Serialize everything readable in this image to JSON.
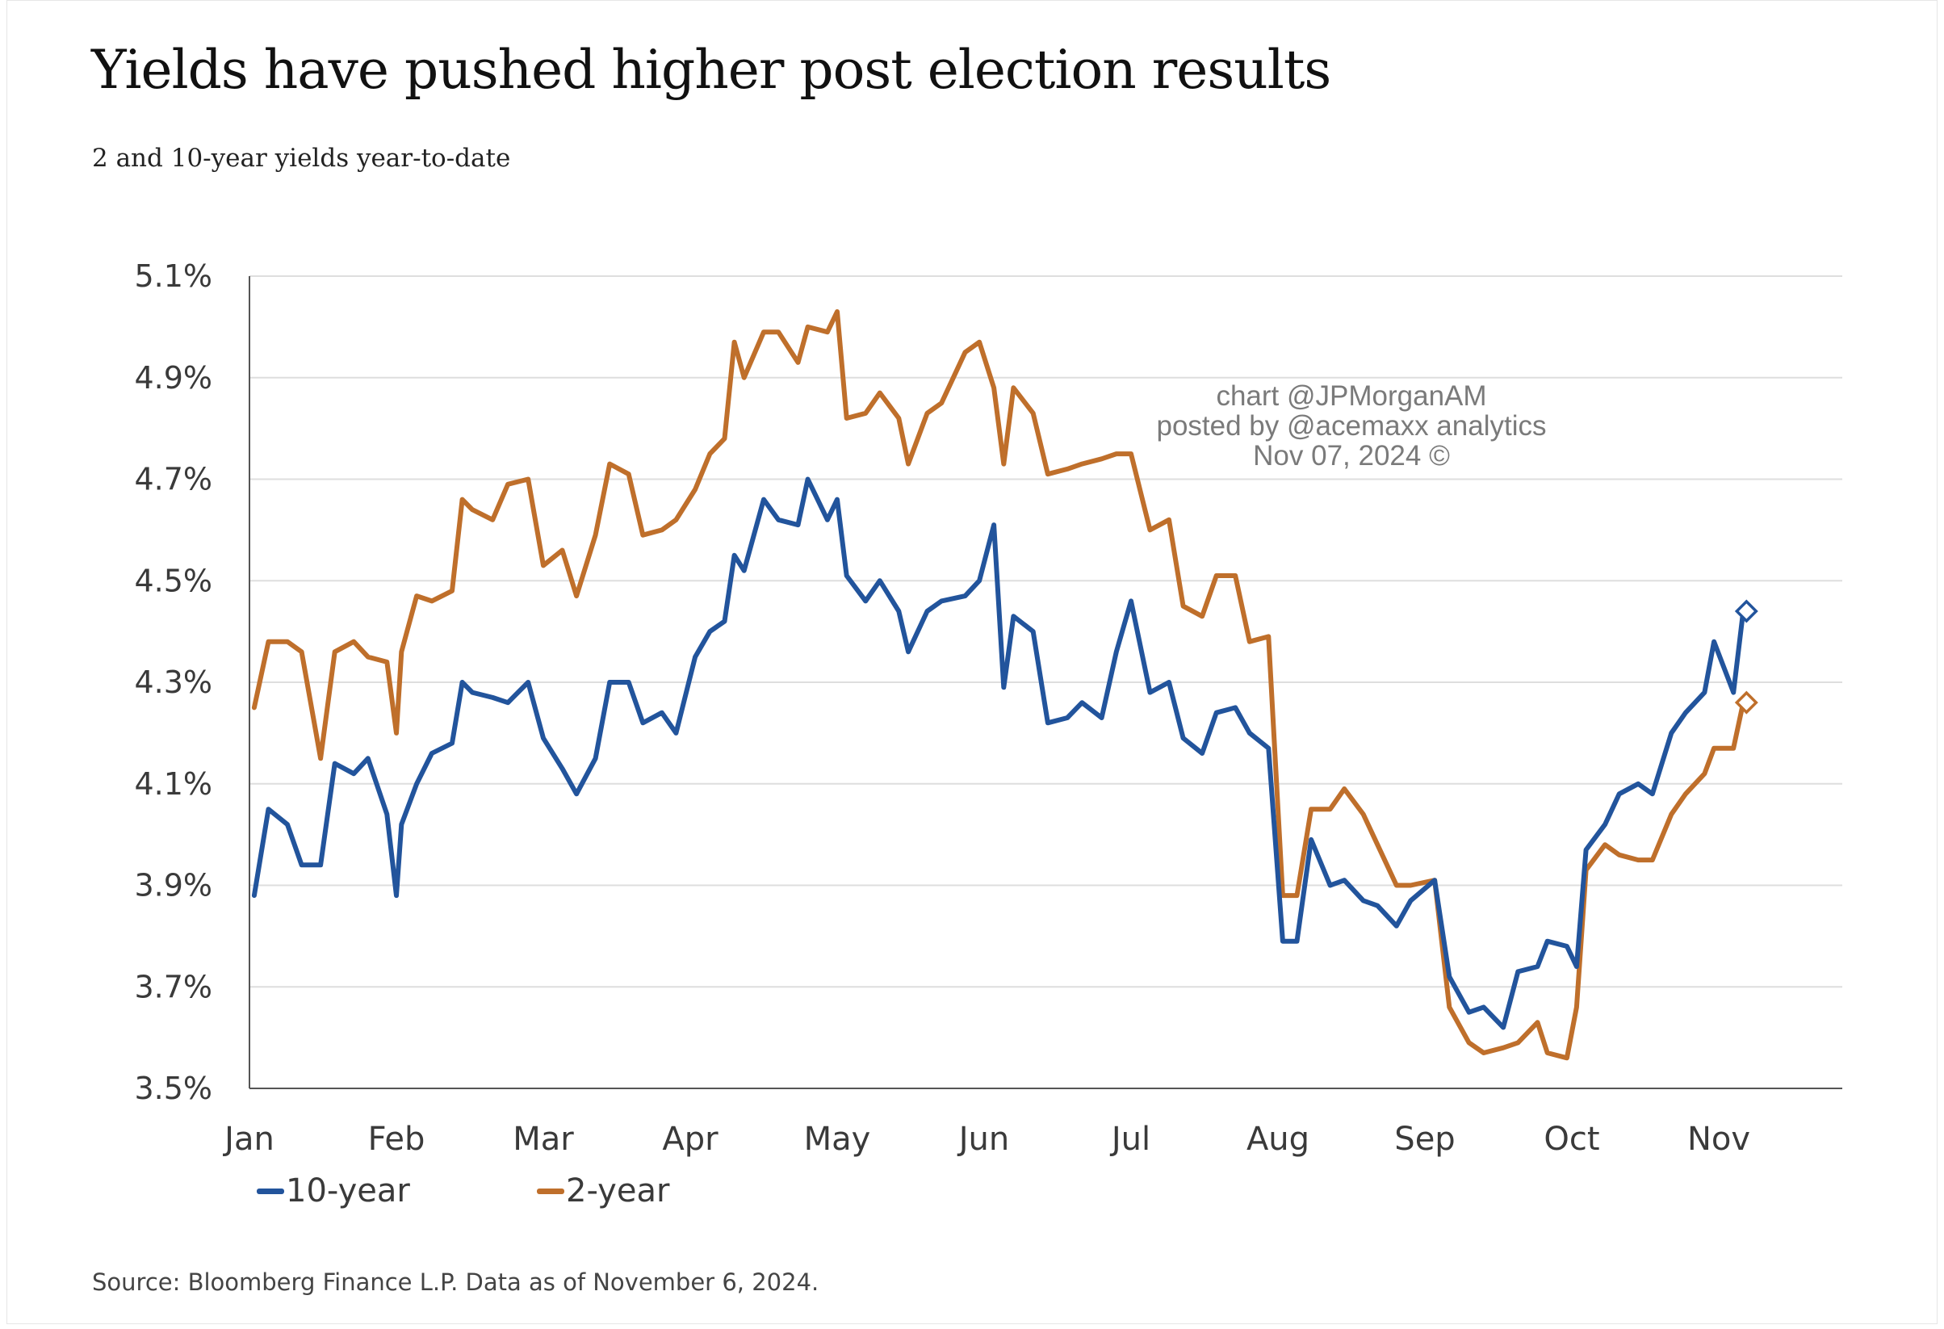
{
  "title": "Yields have pushed higher post election results",
  "subtitle": "2 and 10-year yields year-to-date",
  "source": "Source: Bloomberg Finance L.P. Data as of November 6, 2024.",
  "watermark": {
    "line1": "chart @JPMorganAM",
    "line2": "posted by @acemaxx analytics",
    "line3": "Nov 07, 2024 ©"
  },
  "colors": {
    "ten_year": "#22549c",
    "two_year": "#bf6f2b",
    "grid": "#dedede",
    "axis": "#555555",
    "tick_text": "#3a3a3a"
  },
  "chart_data": {
    "type": "line",
    "title": "Yields have pushed higher post election results",
    "subtitle": "2 and 10-year yields year-to-date",
    "x_tick_labels": [
      "Jan",
      "Feb",
      "Mar",
      "Apr",
      "May",
      "Jun",
      "Jul",
      "Aug",
      "Sep",
      "Oct",
      "Nov"
    ],
    "y_tick_labels": [
      "5.1%",
      "4.9%",
      "4.7%",
      "4.5%",
      "4.3%",
      "4.1%",
      "3.9%",
      "3.7%",
      "3.5%"
    ],
    "y_ticks": [
      5.1,
      4.9,
      4.7,
      4.5,
      4.3,
      4.1,
      3.9,
      3.7,
      3.5
    ],
    "ylim": [
      3.5,
      5.1
    ],
    "xlim": [
      "2024-01-01",
      "2024-12-01"
    ],
    "grid": "horizontal",
    "legend_position": "bottom-left",
    "series": [
      {
        "name": "10-year",
        "color": "#22549c",
        "end_marker": "diamond",
        "points": [
          [
            "2024-01-02",
            3.88
          ],
          [
            "2024-01-05",
            4.05
          ],
          [
            "2024-01-09",
            4.02
          ],
          [
            "2024-01-12",
            3.94
          ],
          [
            "2024-01-16",
            3.94
          ],
          [
            "2024-01-19",
            4.14
          ],
          [
            "2024-01-23",
            4.12
          ],
          [
            "2024-01-26",
            4.15
          ],
          [
            "2024-01-30",
            4.04
          ],
          [
            "2024-02-01",
            3.88
          ],
          [
            "2024-02-02",
            4.02
          ],
          [
            "2024-02-05",
            4.1
          ],
          [
            "2024-02-08",
            4.16
          ],
          [
            "2024-02-12",
            4.18
          ],
          [
            "2024-02-14",
            4.3
          ],
          [
            "2024-02-16",
            4.28
          ],
          [
            "2024-02-20",
            4.27
          ],
          [
            "2024-02-23",
            4.26
          ],
          [
            "2024-02-27",
            4.3
          ],
          [
            "2024-03-01",
            4.19
          ],
          [
            "2024-03-05",
            4.13
          ],
          [
            "2024-03-08",
            4.08
          ],
          [
            "2024-03-12",
            4.15
          ],
          [
            "2024-03-15",
            4.3
          ],
          [
            "2024-03-19",
            4.3
          ],
          [
            "2024-03-22",
            4.22
          ],
          [
            "2024-03-26",
            4.24
          ],
          [
            "2024-03-29",
            4.2
          ],
          [
            "2024-04-02",
            4.35
          ],
          [
            "2024-04-05",
            4.4
          ],
          [
            "2024-04-08",
            4.42
          ],
          [
            "2024-04-10",
            4.55
          ],
          [
            "2024-04-12",
            4.52
          ],
          [
            "2024-04-16",
            4.66
          ],
          [
            "2024-04-19",
            4.62
          ],
          [
            "2024-04-23",
            4.61
          ],
          [
            "2024-04-25",
            4.7
          ],
          [
            "2024-04-29",
            4.62
          ],
          [
            "2024-05-01",
            4.66
          ],
          [
            "2024-05-03",
            4.51
          ],
          [
            "2024-05-07",
            4.46
          ],
          [
            "2024-05-10",
            4.5
          ],
          [
            "2024-05-14",
            4.44
          ],
          [
            "2024-05-16",
            4.36
          ],
          [
            "2024-05-20",
            4.44
          ],
          [
            "2024-05-23",
            4.46
          ],
          [
            "2024-05-28",
            4.47
          ],
          [
            "2024-05-31",
            4.5
          ],
          [
            "2024-06-03",
            4.61
          ],
          [
            "2024-06-05",
            4.29
          ],
          [
            "2024-06-07",
            4.43
          ],
          [
            "2024-06-11",
            4.4
          ],
          [
            "2024-06-14",
            4.22
          ],
          [
            "2024-06-18",
            4.23
          ],
          [
            "2024-06-21",
            4.26
          ],
          [
            "2024-06-25",
            4.23
          ],
          [
            "2024-06-28",
            4.36
          ],
          [
            "2024-07-01",
            4.46
          ],
          [
            "2024-07-05",
            4.28
          ],
          [
            "2024-07-09",
            4.3
          ],
          [
            "2024-07-12",
            4.19
          ],
          [
            "2024-07-16",
            4.16
          ],
          [
            "2024-07-19",
            4.24
          ],
          [
            "2024-07-23",
            4.25
          ],
          [
            "2024-07-26",
            4.2
          ],
          [
            "2024-07-30",
            4.17
          ],
          [
            "2024-08-02",
            3.79
          ],
          [
            "2024-08-05",
            3.79
          ],
          [
            "2024-08-08",
            3.99
          ],
          [
            "2024-08-12",
            3.9
          ],
          [
            "2024-08-15",
            3.91
          ],
          [
            "2024-08-19",
            3.87
          ],
          [
            "2024-08-22",
            3.86
          ],
          [
            "2024-08-26",
            3.82
          ],
          [
            "2024-08-29",
            3.87
          ],
          [
            "2024-09-03",
            3.91
          ],
          [
            "2024-09-06",
            3.72
          ],
          [
            "2024-09-10",
            3.65
          ],
          [
            "2024-09-13",
            3.66
          ],
          [
            "2024-09-17",
            3.62
          ],
          [
            "2024-09-20",
            3.73
          ],
          [
            "2024-09-24",
            3.74
          ],
          [
            "2024-09-26",
            3.79
          ],
          [
            "2024-09-30",
            3.78
          ],
          [
            "2024-10-02",
            3.74
          ],
          [
            "2024-10-04",
            3.97
          ],
          [
            "2024-10-08",
            4.02
          ],
          [
            "2024-10-11",
            4.08
          ],
          [
            "2024-10-15",
            4.1
          ],
          [
            "2024-10-18",
            4.08
          ],
          [
            "2024-10-22",
            4.2
          ],
          [
            "2024-10-25",
            4.24
          ],
          [
            "2024-10-29",
            4.28
          ],
          [
            "2024-10-31",
            4.38
          ],
          [
            "2024-11-04",
            4.28
          ],
          [
            "2024-11-06",
            4.44
          ]
        ]
      },
      {
        "name": "2-year",
        "color": "#bf6f2b",
        "end_marker": "diamond",
        "points": [
          [
            "2024-01-02",
            4.25
          ],
          [
            "2024-01-05",
            4.38
          ],
          [
            "2024-01-09",
            4.38
          ],
          [
            "2024-01-12",
            4.36
          ],
          [
            "2024-01-16",
            4.15
          ],
          [
            "2024-01-19",
            4.36
          ],
          [
            "2024-01-23",
            4.38
          ],
          [
            "2024-01-26",
            4.35
          ],
          [
            "2024-01-30",
            4.34
          ],
          [
            "2024-02-01",
            4.2
          ],
          [
            "2024-02-02",
            4.36
          ],
          [
            "2024-02-05",
            4.47
          ],
          [
            "2024-02-08",
            4.46
          ],
          [
            "2024-02-12",
            4.48
          ],
          [
            "2024-02-14",
            4.66
          ],
          [
            "2024-02-16",
            4.64
          ],
          [
            "2024-02-20",
            4.62
          ],
          [
            "2024-02-23",
            4.69
          ],
          [
            "2024-02-27",
            4.7
          ],
          [
            "2024-03-01",
            4.53
          ],
          [
            "2024-03-05",
            4.56
          ],
          [
            "2024-03-08",
            4.47
          ],
          [
            "2024-03-12",
            4.59
          ],
          [
            "2024-03-15",
            4.73
          ],
          [
            "2024-03-19",
            4.71
          ],
          [
            "2024-03-22",
            4.59
          ],
          [
            "2024-03-26",
            4.6
          ],
          [
            "2024-03-29",
            4.62
          ],
          [
            "2024-04-02",
            4.68
          ],
          [
            "2024-04-05",
            4.75
          ],
          [
            "2024-04-08",
            4.78
          ],
          [
            "2024-04-10",
            4.97
          ],
          [
            "2024-04-12",
            4.9
          ],
          [
            "2024-04-16",
            4.99
          ],
          [
            "2024-04-19",
            4.99
          ],
          [
            "2024-04-23",
            4.93
          ],
          [
            "2024-04-25",
            5.0
          ],
          [
            "2024-04-29",
            4.99
          ],
          [
            "2024-05-01",
            5.03
          ],
          [
            "2024-05-03",
            4.82
          ],
          [
            "2024-05-07",
            4.83
          ],
          [
            "2024-05-10",
            4.87
          ],
          [
            "2024-05-14",
            4.82
          ],
          [
            "2024-05-16",
            4.73
          ],
          [
            "2024-05-20",
            4.83
          ],
          [
            "2024-05-23",
            4.85
          ],
          [
            "2024-05-28",
            4.95
          ],
          [
            "2024-05-31",
            4.97
          ],
          [
            "2024-06-03",
            4.88
          ],
          [
            "2024-06-05",
            4.73
          ],
          [
            "2024-06-07",
            4.88
          ],
          [
            "2024-06-11",
            4.83
          ],
          [
            "2024-06-14",
            4.71
          ],
          [
            "2024-06-18",
            4.72
          ],
          [
            "2024-06-21",
            4.73
          ],
          [
            "2024-06-25",
            4.74
          ],
          [
            "2024-06-28",
            4.75
          ],
          [
            "2024-07-01",
            4.75
          ],
          [
            "2024-07-05",
            4.6
          ],
          [
            "2024-07-09",
            4.62
          ],
          [
            "2024-07-12",
            4.45
          ],
          [
            "2024-07-16",
            4.43
          ],
          [
            "2024-07-19",
            4.51
          ],
          [
            "2024-07-23",
            4.51
          ],
          [
            "2024-07-26",
            4.38
          ],
          [
            "2024-07-30",
            4.39
          ],
          [
            "2024-08-02",
            3.88
          ],
          [
            "2024-08-05",
            3.88
          ],
          [
            "2024-08-08",
            4.05
          ],
          [
            "2024-08-12",
            4.05
          ],
          [
            "2024-08-15",
            4.09
          ],
          [
            "2024-08-19",
            4.04
          ],
          [
            "2024-08-22",
            3.98
          ],
          [
            "2024-08-26",
            3.9
          ],
          [
            "2024-08-29",
            3.9
          ],
          [
            "2024-09-03",
            3.91
          ],
          [
            "2024-09-06",
            3.66
          ],
          [
            "2024-09-10",
            3.59
          ],
          [
            "2024-09-13",
            3.57
          ],
          [
            "2024-09-17",
            3.58
          ],
          [
            "2024-09-20",
            3.59
          ],
          [
            "2024-09-24",
            3.63
          ],
          [
            "2024-09-26",
            3.57
          ],
          [
            "2024-09-30",
            3.56
          ],
          [
            "2024-10-02",
            3.66
          ],
          [
            "2024-10-04",
            3.93
          ],
          [
            "2024-10-08",
            3.98
          ],
          [
            "2024-10-11",
            3.96
          ],
          [
            "2024-10-15",
            3.95
          ],
          [
            "2024-10-18",
            3.95
          ],
          [
            "2024-10-22",
            4.04
          ],
          [
            "2024-10-25",
            4.08
          ],
          [
            "2024-10-29",
            4.12
          ],
          [
            "2024-10-31",
            4.17
          ],
          [
            "2024-11-04",
            4.17
          ],
          [
            "2024-11-06",
            4.26
          ]
        ]
      }
    ]
  }
}
